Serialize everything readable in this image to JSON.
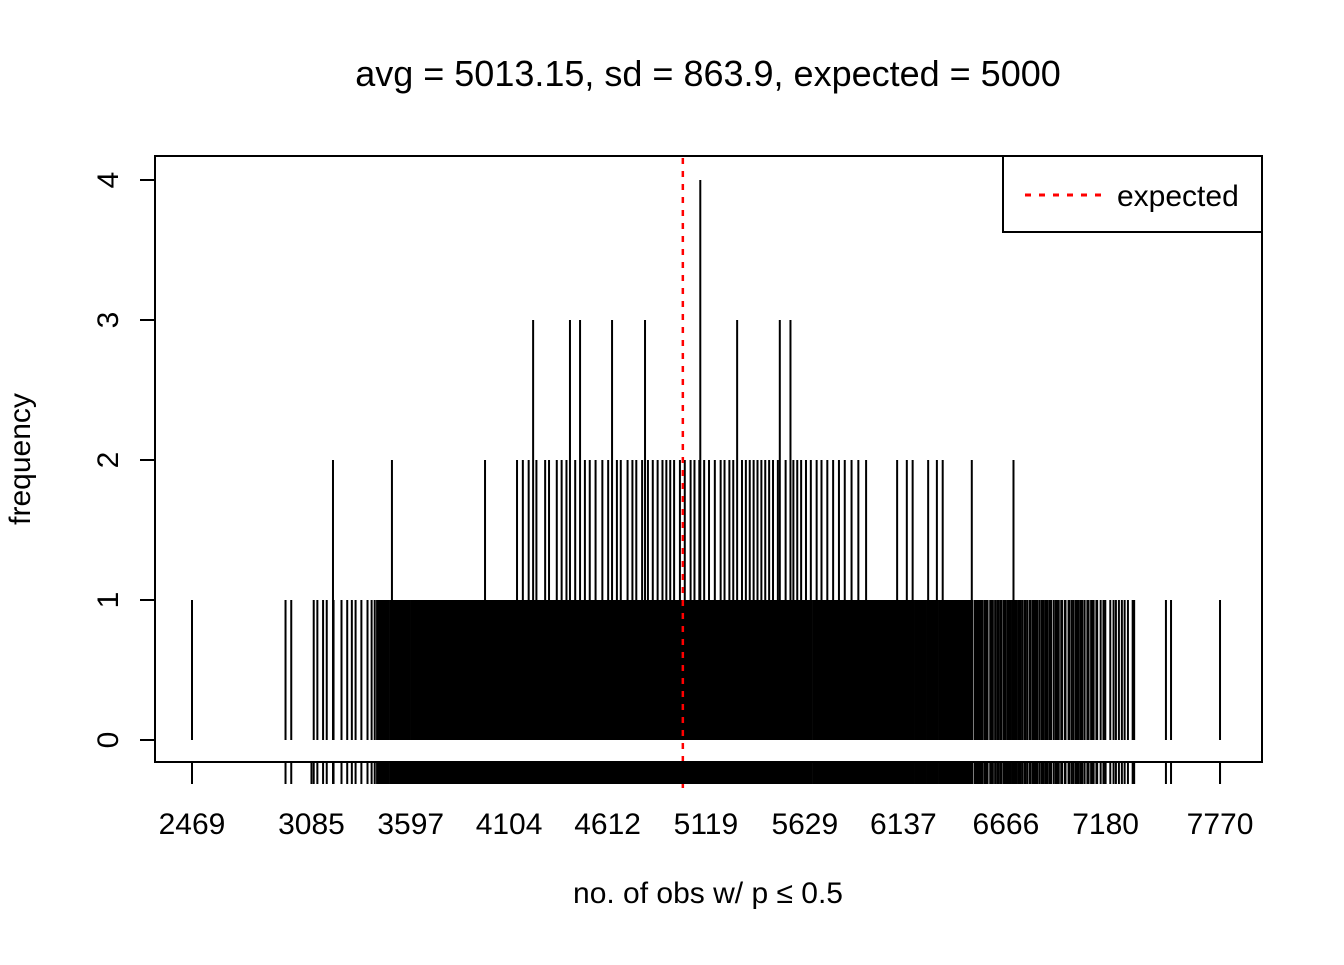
{
  "title": "avg = 5013.15, sd = 863.9, expected = 5000",
  "x_axis": {
    "label": "no. of obs w/ p ≤ 0.5",
    "tick_labels": [
      "2469",
      "3085",
      "3597",
      "4104",
      "4612",
      "5119",
      "5629",
      "6137",
      "6666",
      "7180",
      "7770"
    ],
    "tick_values": [
      2469,
      3085,
      3597,
      4104,
      4612,
      5119,
      5629,
      6137,
      6666,
      7180,
      7770
    ]
  },
  "y_axis": {
    "label": "frequency",
    "tick_labels": [
      "0",
      "1",
      "2",
      "3",
      "4"
    ],
    "tick_values": [
      0,
      1,
      2,
      3,
      4
    ]
  },
  "legend": {
    "items": [
      {
        "label": "expected",
        "color": "#ff0000",
        "line_style": "dotted"
      }
    ]
  },
  "colors": {
    "spike": "#000000",
    "expected_line": "#ff0000",
    "background": "#ffffff",
    "text": "#000000",
    "border": "#000000"
  },
  "chart_data": {
    "type": "bar",
    "subtype": "spike-frequency-plot (R plot(table(x), type='h') with rug of axis ticks at every unique value)",
    "title": "avg = 5013.15, sd = 863.9, expected = 5000",
    "xlabel": "no. of obs w/ p ≤ 0.5",
    "ylabel": "frequency",
    "stats": {
      "avg": 5013.15,
      "sd": 863.9,
      "expected": 5000
    },
    "expected_line_x": 5000,
    "xlim": [
      2278,
      7986
    ],
    "ylim": [
      0,
      4
    ],
    "grid": false,
    "legend_position": "top-right",
    "x_data_min": 2469,
    "x_data_max": 7770,
    "spikes_height_4": [
      5090
    ],
    "spikes_height_3": [
      4228,
      4418,
      4470,
      4635,
      4805,
      5280,
      5500,
      5555
    ],
    "spikes_height_2": [
      3196,
      3500,
      3980,
      4145,
      4175,
      4205,
      4245,
      4290,
      4310,
      4350,
      4375,
      4400,
      4445,
      4495,
      4520,
      4550,
      4585,
      4615,
      4660,
      4680,
      4715,
      4740,
      4760,
      4790,
      4820,
      4845,
      4870,
      4895,
      4915,
      4935,
      4955,
      4985,
      5010,
      5040,
      5060,
      5085,
      5110,
      5135,
      5165,
      5195,
      5215,
      5240,
      5260,
      5305,
      5325,
      5345,
      5365,
      5385,
      5405,
      5425,
      5445,
      5465,
      5490,
      5530,
      5570,
      5590,
      5610,
      5635,
      5660,
      5690,
      5715,
      5745,
      5775,
      5805,
      5835,
      5870,
      5905,
      5945,
      6105,
      6155,
      6185,
      6265,
      6310,
      6340,
      6490,
      6705
    ],
    "spikes_height_1_runs": [
      [
        2469,
        2469,
        1
      ],
      [
        2958,
        2992,
        2
      ],
      [
        3095,
        3200,
        5
      ],
      [
        3205,
        3420,
        9
      ],
      [
        3425,
        3700,
        48
      ],
      [
        3700,
        4100,
        95
      ],
      [
        4100,
        5600,
        290
      ],
      [
        5600,
        6450,
        160
      ],
      [
        6450,
        6900,
        52
      ],
      [
        6900,
        7140,
        26
      ],
      [
        7150,
        7330,
        12
      ],
      [
        7495,
        7512,
        2
      ],
      [
        7770,
        7770,
        1
      ]
    ],
    "rug": "tick below axis at every spike x position",
    "jitter_seed": 42
  }
}
